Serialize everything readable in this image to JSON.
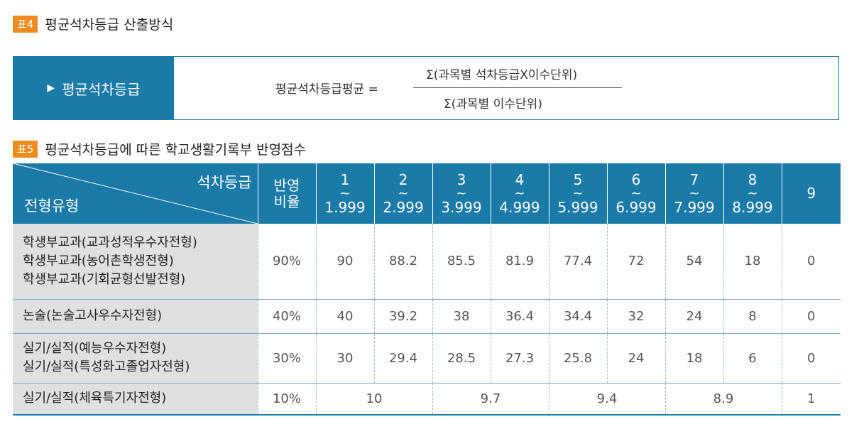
{
  "table4": {
    "tag": "표4",
    "title": "평균석차등급 산출방식",
    "box_label": "평균석차등급",
    "lhs": "평균석차등급평균 =",
    "numerator": "Σ(과목별 석차등급X이수단위)",
    "denominator": "Σ(과목별 이수단위)"
  },
  "table5": {
    "tag": "표5",
    "title": "평균석차등급에 따른 학교생활기록부 반영점수",
    "header": {
      "diag_top": "석차등급",
      "diag_bottom": "전형유형",
      "ratio_line1": "반영",
      "ratio_line2": "비율",
      "grades": [
        {
          "top": "1",
          "tilde": "~",
          "bottom": "1.999"
        },
        {
          "top": "2",
          "tilde": "~",
          "bottom": "2.999"
        },
        {
          "top": "3",
          "tilde": "~",
          "bottom": "3.999"
        },
        {
          "top": "4",
          "tilde": "~",
          "bottom": "4.999"
        },
        {
          "top": "5",
          "tilde": "~",
          "bottom": "5.999"
        },
        {
          "top": "6",
          "tilde": "~",
          "bottom": "6.999"
        },
        {
          "top": "7",
          "tilde": "~",
          "bottom": "7.999"
        },
        {
          "top": "8",
          "tilde": "~",
          "bottom": "8.999"
        }
      ],
      "grade9": "9"
    },
    "rows": [
      {
        "types": [
          "학생부교과(교과성적우수자전형)",
          "학생부교과(농어촌학생전형)",
          "학생부교과(기회균형선발전형)"
        ],
        "ratio": "90%",
        "values": [
          "90",
          "88.2",
          "85.5",
          "81.9",
          "77.4",
          "72",
          "54",
          "18",
          "0"
        ]
      },
      {
        "types": [
          "논술(논술고사우수자전형)"
        ],
        "ratio": "40%",
        "values": [
          "40",
          "39.2",
          "38",
          "36.4",
          "34.4",
          "32",
          "24",
          "8",
          "0"
        ]
      },
      {
        "types": [
          "실기/실적(예능우수자전형)",
          "실기/실적(특성화고졸업자전형)"
        ],
        "ratio": "30%",
        "values": [
          "30",
          "29.4",
          "28.5",
          "27.3",
          "25.8",
          "24",
          "18",
          "6",
          "0"
        ]
      },
      {
        "types": [
          "실기/실적(체육특기자전형)"
        ],
        "ratio": "10%",
        "merged": [
          "10",
          "9.7",
          "9.4",
          "8.9",
          "1"
        ]
      }
    ]
  }
}
